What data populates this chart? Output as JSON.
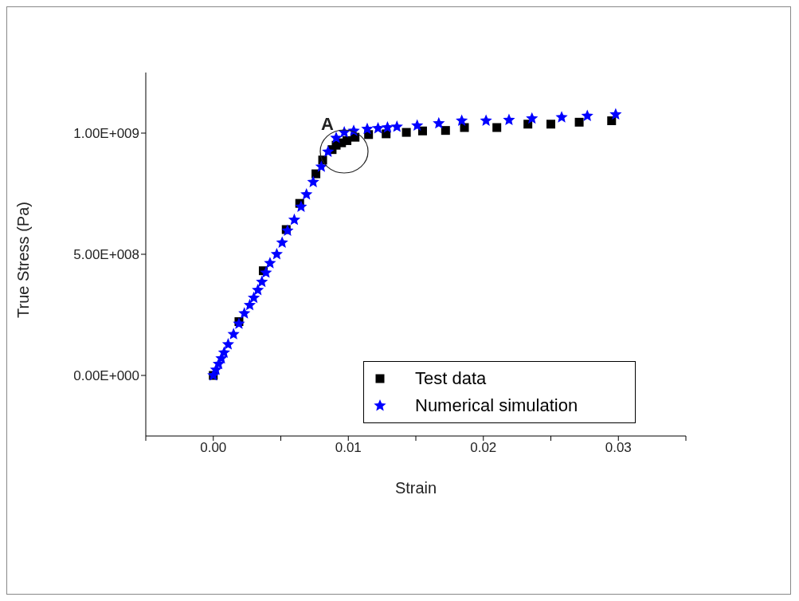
{
  "chart_data": {
    "type": "scatter",
    "xlabel": "Strain",
    "ylabel": "True Stress (Pa)",
    "xlim": [
      -0.005,
      0.035
    ],
    "ylim": [
      -250000000,
      1250000000
    ],
    "xticks": [
      {
        "value": -0.005,
        "label": null
      },
      {
        "value": 0,
        "label": "0.00"
      },
      {
        "value": 0.005,
        "label": null
      },
      {
        "value": 0.01,
        "label": "0.01"
      },
      {
        "value": 0.015,
        "label": null
      },
      {
        "value": 0.02,
        "label": "0.02"
      },
      {
        "value": 0.025,
        "label": null
      },
      {
        "value": 0.03,
        "label": "0.03"
      },
      {
        "value": 0.035,
        "label": null
      }
    ],
    "yticks": [
      {
        "value": 0,
        "label": "0.00E+000"
      },
      {
        "value": 500000000,
        "label": "5.00E+008"
      },
      {
        "value": 1000000000,
        "label": "1.00E+009"
      }
    ],
    "grid": false,
    "legend": "bottom right",
    "annotations": [
      "A"
    ],
    "series": [
      {
        "name": "Test data",
        "color": "#000000",
        "marker": "square",
        "x": [
          0,
          0.0019,
          0.0037,
          0.0054,
          0.0064,
          0.0076,
          0.0081,
          0.0088,
          0.0091,
          0.0095,
          0.0099,
          0.0105,
          0.0115,
          0.0128,
          0.0143,
          0.0155,
          0.0172,
          0.0186,
          0.021,
          0.0233,
          0.025,
          0.0271,
          0.0295
        ],
        "values": [
          0,
          222000000,
          432000000,
          602000000,
          710000000,
          832000000,
          889000000,
          932000000,
          950000000,
          960000000,
          969000000,
          983000000,
          994000000,
          997000000,
          1003000000,
          1009000000,
          1011000000,
          1023000000,
          1023000000,
          1037000000,
          1037000000,
          1045000000,
          1051000000
        ]
      },
      {
        "name": "Numerical simulation",
        "color": "#0000ff",
        "marker": "star",
        "x": [
          0,
          0.0002,
          0.0004,
          0.0006,
          0.0008,
          0.0011,
          0.0015,
          0.0019,
          0.0023,
          0.0027,
          0.003,
          0.0033,
          0.0036,
          0.0039,
          0.0042,
          0.0047,
          0.0051,
          0.0055,
          0.006,
          0.0065,
          0.0069,
          0.0074,
          0.008,
          0.0085,
          0.0091,
          0.0097,
          0.0104,
          0.0114,
          0.0122,
          0.0129,
          0.0136,
          0.0151,
          0.0167,
          0.0184,
          0.0202,
          0.0219,
          0.0236,
          0.0258,
          0.0277,
          0.0298
        ],
        "values": [
          0,
          23000000,
          47000000,
          70000000,
          94000000,
          128000000,
          170000000,
          213000000,
          256000000,
          290000000,
          320000000,
          352000000,
          386000000,
          424000000,
          463000000,
          500000000,
          548000000,
          597000000,
          642000000,
          696000000,
          747000000,
          798000000,
          861000000,
          923000000,
          980000000,
          1003000000,
          1009000000,
          1017000000,
          1020000000,
          1023000000,
          1026000000,
          1031000000,
          1040000000,
          1051000000,
          1051000000,
          1054000000,
          1060000000,
          1065000000,
          1071000000,
          1077000000
        ]
      }
    ]
  }
}
